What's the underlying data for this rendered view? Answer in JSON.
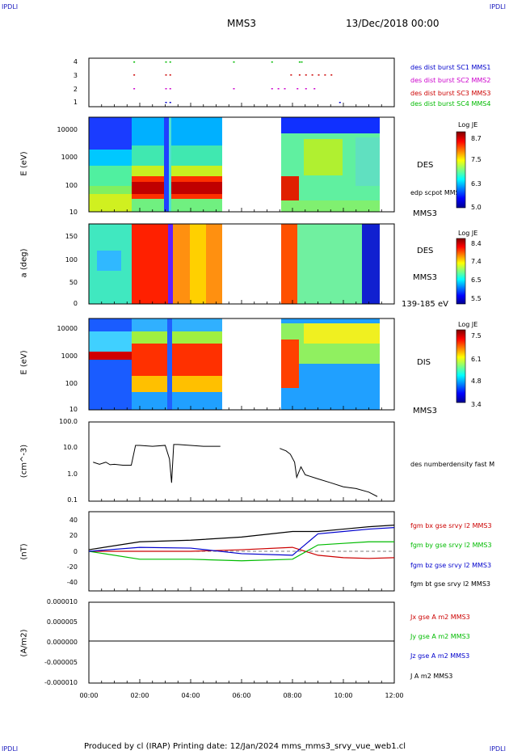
{
  "corners": {
    "tl": "IPDLI",
    "tr": "IPDLI",
    "bl": "IPDLI",
    "br": "IPDLI"
  },
  "header": {
    "spacecraft": "MMS3",
    "date": "13/Dec/2018 00:00"
  },
  "footer": {
    "text": "Produced by cl (IRAP)   Printing date: 12/Jan/2024   mms_mms3_srvy_vue_web1.cl"
  },
  "colors": {
    "sc1": "#0000cc",
    "sc2": "#cc00cc",
    "sc3": "#cc0000",
    "sc4": "#00bb00",
    "black": "#000000"
  },
  "time_ticks": [
    "00:00",
    "02:00",
    "04:00",
    "06:00",
    "08:00",
    "10:00",
    "12:00"
  ],
  "panels": {
    "p1": {
      "ticks": [
        "4",
        "3",
        "2",
        "1"
      ],
      "legend": [
        "des dist burst SC1 MMS1",
        "des dist burst SC2 MMS2",
        "des dist burst SC3 MMS3",
        "des dist burst SC4 MMS4"
      ]
    },
    "p2": {
      "ylabel": "E (eV)",
      "ticks": [
        "10000",
        "1000",
        "100",
        "10"
      ],
      "name": "DES",
      "extra": "edp scpot MMS3",
      "sc": "MMS3",
      "cb_title": "Log JE",
      "cb_ticks": [
        "8.7",
        "7.5",
        "6.3",
        "5.0"
      ]
    },
    "p3": {
      "ylabel": "a (deg)",
      "ticks": [
        "150",
        "100",
        "50",
        "0"
      ],
      "name": "DES",
      "sc": "MMS3",
      "range": "139-185 eV",
      "cb_title": "Log JE",
      "cb_ticks": [
        "8.4",
        "7.4",
        "6.5",
        "5.5"
      ]
    },
    "p4": {
      "ylabel": "E (eV)",
      "ticks": [
        "10000",
        "1000",
        "100",
        "10"
      ],
      "name": "DIS",
      "sc": "MMS3",
      "cb_title": "Log JE",
      "cb_ticks": [
        "7.5",
        "6.1",
        "4.8",
        "3.4"
      ]
    },
    "p5": {
      "ylabel": "(cm^-3)",
      "ticks": [
        "100.0",
        "10.0",
        "1.0",
        "0.1"
      ],
      "legend": "des numberdensity fast M"
    },
    "p6": {
      "ylabel": "(nT)",
      "ticks": [
        "40",
        "20",
        "0",
        "-20",
        "-40"
      ],
      "legend": [
        "fgm bx gse srvy l2 MMS3",
        "fgm by gse srvy l2 MMS3",
        "fgm bz gse srvy l2 MMS3",
        "fgm bt gse srvy l2 MMS3"
      ]
    },
    "p7": {
      "ylabel": "(A/m2)",
      "ticks": [
        "0.000010",
        "0.000005",
        "0.000000",
        "-0.000005",
        "-0.000010"
      ],
      "legend": [
        "Jx gse A m2 MMS3",
        "Jy gse A m2 MMS3",
        "Jz gse A m2 MMS3",
        "J A m2 MMS3"
      ]
    }
  },
  "chart_data": [
    {
      "type": "scatter",
      "title": "",
      "ylabel": "",
      "x_range": [
        "00:00",
        "12:00"
      ],
      "yticks": [
        1,
        2,
        3,
        4
      ],
      "series": [
        {
          "name": "des dist burst SC1 MMS1",
          "y": 1,
          "x": [
            "03:00",
            "03:10",
            "09:50"
          ]
        },
        {
          "name": "des dist burst SC2 MMS2",
          "y": 2,
          "x": [
            "01:45",
            "03:00",
            "03:10",
            "05:40",
            "07:10",
            "07:25",
            "07:40",
            "08:10",
            "08:30",
            "08:50"
          ]
        },
        {
          "name": "des dist burst SC3 MMS3",
          "y": 3,
          "x": [
            "01:45",
            "03:00",
            "03:10",
            "07:55",
            "08:15",
            "08:30",
            "08:45",
            "09:00",
            "09:15",
            "09:30"
          ]
        },
        {
          "name": "des dist burst SC4 MMS4",
          "y": 4,
          "x": [
            "01:45",
            "03:00",
            "03:10",
            "05:40",
            "07:10",
            "08:15",
            "08:20"
          ]
        }
      ]
    },
    {
      "type": "heatmap",
      "ylabel": "E (eV)",
      "yscale": "log",
      "ylim": [
        10,
        30000
      ],
      "cbar": "Log JE",
      "cbar_range": [
        5.0,
        8.7
      ],
      "x_range": [
        "00:00",
        "12:00"
      ],
      "data_gap": [
        "05:20",
        "07:35"
      ]
    },
    {
      "type": "heatmap",
      "ylabel": "a (deg)",
      "ylim": [
        0,
        180
      ],
      "cbar": "Log JE",
      "cbar_range": [
        5.5,
        8.4
      ],
      "x_range": [
        "00:00",
        "12:00"
      ],
      "data_gap": [
        "05:20",
        "07:35"
      ]
    },
    {
      "type": "heatmap",
      "ylabel": "E (eV)",
      "yscale": "log",
      "ylim": [
        10,
        30000
      ],
      "cbar": "Log JE",
      "cbar_range": [
        3.4,
        7.5
      ],
      "x_range": [
        "00:00",
        "12:00"
      ],
      "data_gap": [
        "05:20",
        "07:35"
      ]
    },
    {
      "type": "line",
      "ylabel": "(cm^-3)",
      "yscale": "log",
      "ylim": [
        0.1,
        100
      ],
      "series": [
        {
          "name": "des numberdensity fast M",
          "x": [
            "00:10",
            "00:25",
            "00:40",
            "00:50",
            "01:00",
            "01:20",
            "01:40",
            "01:50",
            "02:00",
            "02:30",
            "03:00",
            "03:10",
            "03:15",
            "03:20",
            "03:30",
            "04:00",
            "04:30",
            "05:10",
            "07:30",
            "07:45",
            "07:55",
            "08:05",
            "08:10",
            "08:20",
            "08:30",
            "09:00",
            "09:30",
            "10:00",
            "10:30",
            "11:00",
            "11:20"
          ],
          "y": [
            3,
            2.5,
            3,
            2.4,
            2.5,
            2.3,
            2.3,
            13,
            13,
            12,
            13,
            4,
            0.5,
            14,
            14,
            13,
            12,
            12,
            10,
            8,
            6,
            3,
            0.8,
            2,
            1.0,
            0.7,
            0.5,
            0.35,
            0.3,
            0.22,
            0.15
          ]
        }
      ]
    },
    {
      "type": "line",
      "ylabel": "(nT)",
      "ylim": [
        -50,
        50
      ],
      "x_range": [
        "00:00",
        "12:00"
      ],
      "series": [
        {
          "name": "fgm bx gse srvy l2 MMS3",
          "x": [
            "00:00",
            "02:00",
            "04:00",
            "06:00",
            "08:00",
            "09:00",
            "10:00",
            "11:00",
            "12:00"
          ],
          "y": [
            0,
            0,
            0,
            2,
            5,
            -5,
            -8,
            -9,
            -8
          ]
        },
        {
          "name": "fgm by gse srvy l2 MMS3",
          "x": [
            "00:00",
            "02:00",
            "04:00",
            "06:00",
            "08:00",
            "09:00",
            "10:00",
            "11:00",
            "12:00"
          ],
          "y": [
            0,
            -10,
            -10,
            -12,
            -10,
            8,
            10,
            12,
            12
          ]
        },
        {
          "name": "fgm bz gse srvy l2 MMS3",
          "x": [
            "00:00",
            "02:00",
            "04:00",
            "06:00",
            "08:00",
            "09:00",
            "10:00",
            "11:00",
            "12:00"
          ],
          "y": [
            0,
            5,
            4,
            -3,
            -5,
            22,
            25,
            28,
            30
          ]
        },
        {
          "name": "fgm bt gse srvy l2 MMS3",
          "x": [
            "00:00",
            "02:00",
            "04:00",
            "06:00",
            "08:00",
            "09:00",
            "10:00",
            "11:00",
            "12:00"
          ],
          "y": [
            2,
            12,
            14,
            18,
            25,
            25,
            28,
            31,
            33
          ]
        }
      ]
    },
    {
      "type": "line",
      "ylabel": "(A/m2)",
      "ylim": [
        -1e-05,
        1e-05
      ],
      "x_range": [
        "00:00",
        "12:00"
      ],
      "series": [
        {
          "name": "Jx gse A m2 MMS3",
          "x": [
            "00:00",
            "12:00"
          ],
          "y": [
            0,
            0
          ]
        },
        {
          "name": "Jy gse A m2 MMS3",
          "x": [
            "00:00",
            "12:00"
          ],
          "y": [
            0,
            0
          ]
        },
        {
          "name": "Jz gse A m2 MMS3",
          "x": [
            "00:00",
            "12:00"
          ],
          "y": [
            0,
            0
          ]
        },
        {
          "name": "J A m2 MMS3",
          "x": [
            "00:00",
            "12:00"
          ],
          "y": [
            0,
            0
          ]
        }
      ]
    }
  ]
}
